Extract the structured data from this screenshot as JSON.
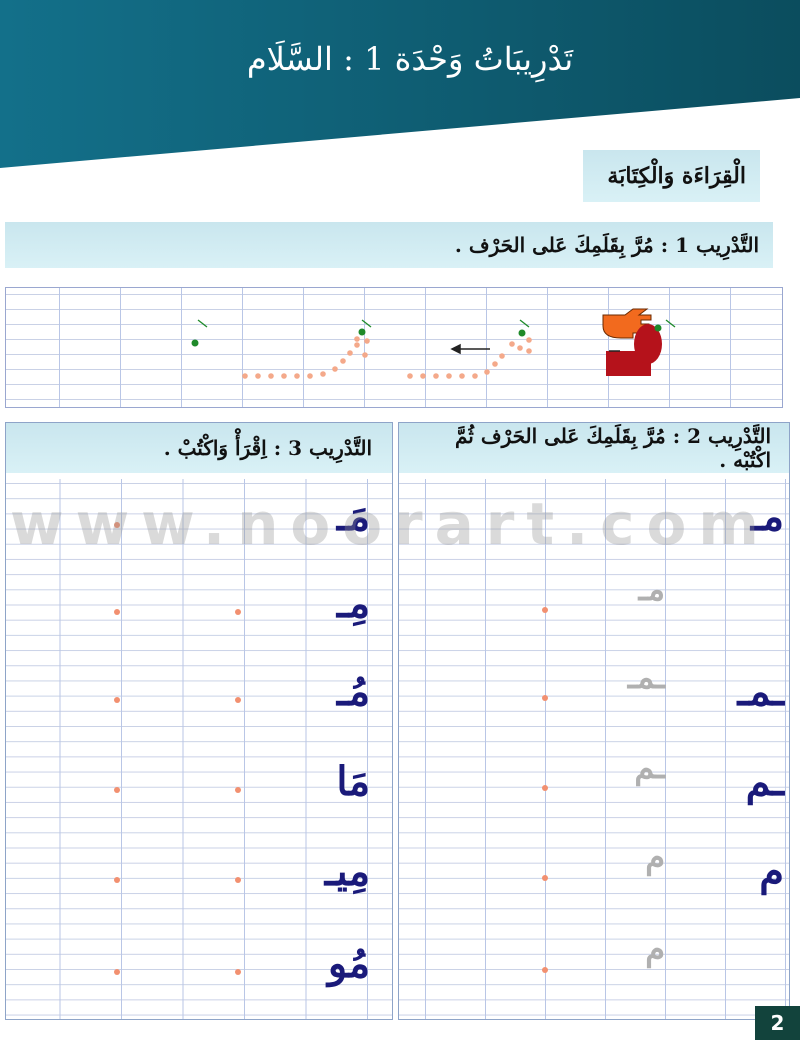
{
  "header": {
    "title": "تَدْرِيبَاتُ وَحْدَة 1 : السَّلَام",
    "color": "#0f6175"
  },
  "section": {
    "label": "الْقِرَاءَة وَالْكِتَابَة"
  },
  "exercise1": {
    "instruction": "التَّدْرِيب 1 :  مُرَّ بِقَلَمِكَ عَلى الحَرْف .",
    "icons": [
      "pointing-hand-icon",
      "arrow-left-icon",
      "green-start-dot-icon"
    ]
  },
  "exercise2": {
    "instruction": "التَّدْرِيب 2 :  مُرَّ بِقَلَمِكَ عَلى الحَرْف ثُمَّ اكْتُبْه .",
    "model_letters": [
      "مـ",
      "",
      "ـمـ",
      "ـم",
      "م",
      ""
    ],
    "trace_letters": [
      "",
      "مـ",
      "ـمـ",
      "ـم",
      "م",
      "م"
    ]
  },
  "exercise3": {
    "instruction": "التَّدْرِيب 3 :  اِقْرَأْ وَاكْتُبْ .",
    "syllables": [
      "مَـ",
      "مِـ",
      "مُـ",
      "مَا",
      "مِيـ",
      "مُو"
    ]
  },
  "watermark": "www.noorart.com",
  "page_number": "2",
  "colors": {
    "dot": "#f29070",
    "letter": "#1a1a7a",
    "start_dot": "#1f8a2a",
    "page_tab": "#12433c"
  }
}
